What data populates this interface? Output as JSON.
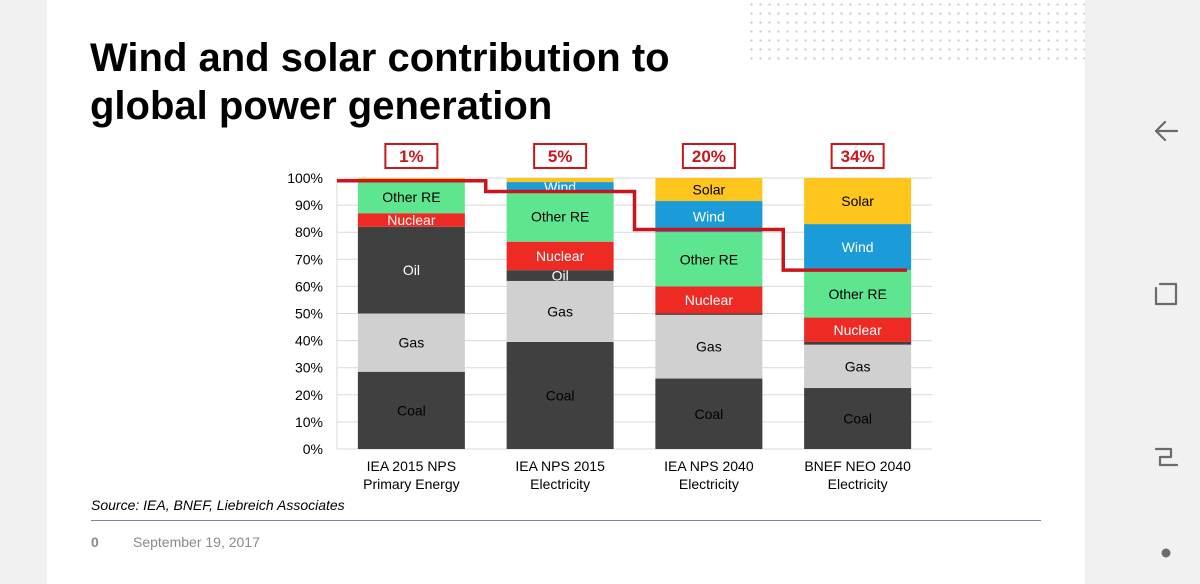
{
  "title_line1": "Wind and solar contribution to",
  "title_line2": "global power generation",
  "source": "Source: IEA, BNEF, Liebreich Associates",
  "footer": {
    "page_number": "0",
    "date": "September 19, 2017"
  },
  "colors": {
    "Coal": "#404040",
    "Gas": "#d0d0d0",
    "Oil": "#404040",
    "Nuclear": "#ee2a24",
    "Other RE": "#5de68f",
    "Wind": "#1b9bd8",
    "Solar": "#fec61c",
    "share_line": "#c8161c",
    "badge": "#c8161c"
  },
  "nav_icons": [
    "back-arrow-icon",
    "recent-apps-icon",
    "home-icon",
    "dot-icon"
  ],
  "chart_data": {
    "type": "bar",
    "stacked": true,
    "title": "Wind and solar contribution to global power generation",
    "ylim": [
      0,
      100
    ],
    "yticks": [
      "0%",
      "10%",
      "20%",
      "30%",
      "40%",
      "50%",
      "60%",
      "70%",
      "80%",
      "90%",
      "100%"
    ],
    "categories": [
      {
        "line1": "IEA 2015 NPS",
        "line2": "Primary Energy"
      },
      {
        "line1": "IEA NPS 2015",
        "line2": "Electricity"
      },
      {
        "line1": "IEA NPS 2040",
        "line2": "Electricity"
      },
      {
        "line1": "BNEF NEO 2040",
        "line2": "Electricity"
      }
    ],
    "wind_solar_share": [
      "1%",
      "5%",
      "20%",
      "34%"
    ],
    "share_line_levels": [
      99,
      95,
      81,
      66
    ],
    "stacks": [
      [
        {
          "name": "Coal",
          "value": 28.5,
          "label": "Coal"
        },
        {
          "name": "Gas",
          "value": 21.5,
          "label": "Gas"
        },
        {
          "name": "Oil",
          "value": 32,
          "label": "Oil",
          "label_color": "#ffffff"
        },
        {
          "name": "Nuclear",
          "value": 5,
          "label": "Nuclear",
          "label_color": "#ffffff"
        },
        {
          "name": "Other RE",
          "value": 12,
          "label": "Other RE"
        },
        {
          "name": "Wind",
          "value": 0.6,
          "label": ""
        },
        {
          "name": "Solar",
          "value": 0.4,
          "label": ""
        }
      ],
      [
        {
          "name": "Coal",
          "value": 39.5,
          "label": "Coal"
        },
        {
          "name": "Gas",
          "value": 22.5,
          "label": "Gas"
        },
        {
          "name": "Oil",
          "value": 4,
          "label": "Oil",
          "label_color": "#ffffff"
        },
        {
          "name": "Nuclear",
          "value": 10.5,
          "label": "Nuclear",
          "label_color": "#ffffff"
        },
        {
          "name": "Other RE",
          "value": 18.5,
          "label": "Other RE"
        },
        {
          "name": "Wind",
          "value": 3.5,
          "label": "Wind",
          "label_color": "#ffffff"
        },
        {
          "name": "Solar",
          "value": 1.5,
          "label": ""
        }
      ],
      [
        {
          "name": "Coal",
          "value": 26,
          "label": "Coal"
        },
        {
          "name": "Gas",
          "value": 23.5,
          "label": "Gas"
        },
        {
          "name": "Oil",
          "value": 0.5,
          "label": ""
        },
        {
          "name": "Nuclear",
          "value": 10,
          "label": "Nuclear",
          "label_color": "#ffffff"
        },
        {
          "name": "Other RE",
          "value": 20,
          "label": "Other RE"
        },
        {
          "name": "Wind",
          "value": 11.5,
          "label": "Wind",
          "label_color": "#ffffff"
        },
        {
          "name": "Solar",
          "value": 8.5,
          "label": "Solar"
        }
      ],
      [
        {
          "name": "Coal",
          "value": 22.5,
          "label": "Coal"
        },
        {
          "name": "Gas",
          "value": 16,
          "label": "Gas"
        },
        {
          "name": "Oil",
          "value": 1,
          "label": ""
        },
        {
          "name": "Nuclear",
          "value": 9,
          "label": "Nuclear",
          "label_color": "#ffffff"
        },
        {
          "name": "Other RE",
          "value": 17.5,
          "label": "Other RE"
        },
        {
          "name": "Wind",
          "value": 17,
          "label": "Wind",
          "label_color": "#ffffff"
        },
        {
          "name": "Solar",
          "value": 17,
          "label": "Solar"
        }
      ]
    ]
  }
}
